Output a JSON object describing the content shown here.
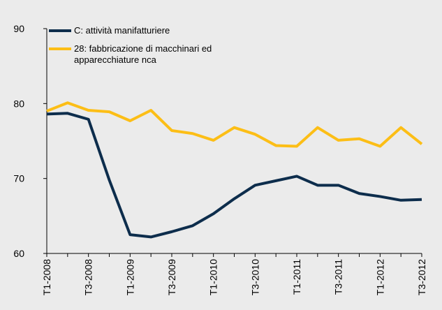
{
  "chart_data": {
    "type": "line",
    "categories": [
      "T1-2008",
      null,
      "T3-2008",
      null,
      "T1-2009",
      null,
      "T3-2009",
      null,
      "T1-2010",
      null,
      "T3-2010",
      null,
      "T1-2011",
      null,
      "T3-2011",
      null,
      "T1-2012",
      null,
      "T3-2012"
    ],
    "series": [
      {
        "name": "C: attività manifatturiere",
        "color": "#0d2d4c",
        "values": [
          78.6,
          78.7,
          77.9,
          69.8,
          62.5,
          62.2,
          62.9,
          63.7,
          65.3,
          67.3,
          69.1,
          69.7,
          70.3,
          69.1,
          69.1,
          68.0,
          67.6,
          67.1,
          67.2
        ]
      },
      {
        "name": "28: fabbricazione di macchinari ed apparecchiature nca",
        "color": "#fcbe16",
        "values": [
          79.0,
          80.1,
          79.1,
          78.9,
          77.7,
          79.1,
          76.4,
          76.0,
          75.1,
          76.8,
          75.9,
          74.4,
          74.3,
          76.8,
          75.1,
          75.3,
          74.3,
          76.8,
          74.6
        ]
      }
    ],
    "ylim": [
      60,
      90
    ],
    "yticks": [
      60,
      70,
      80,
      90
    ],
    "grid": false,
    "legend": "top-left"
  }
}
